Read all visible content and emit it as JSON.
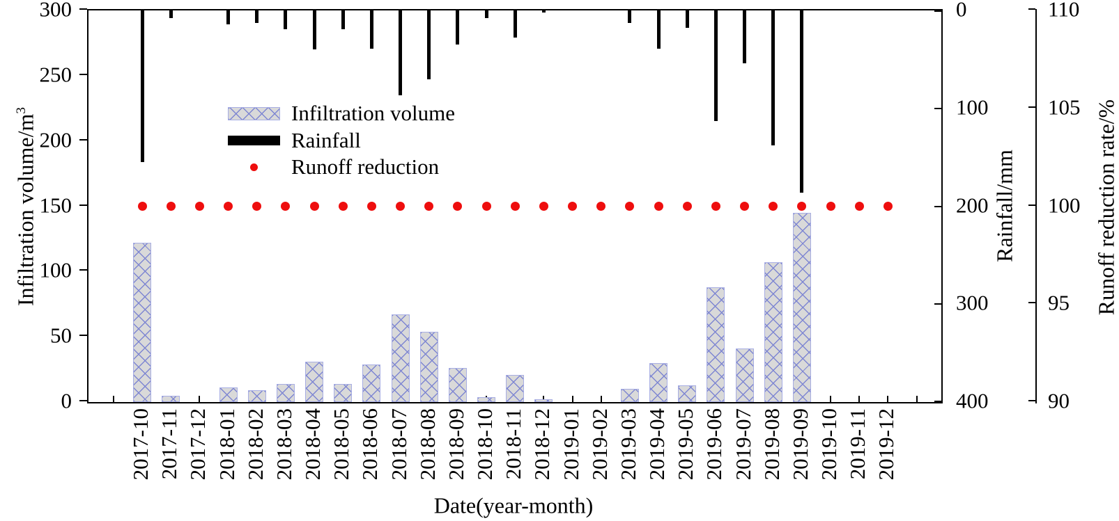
{
  "axis_titles": {
    "x": "Date(year-month)",
    "y_left_main": "Infiltration volume/m",
    "y_left_sup": "3",
    "y_right_inner": "Rainfall/mm",
    "y_right_outer": "Runoff reduction rate/%"
  },
  "legend": {
    "items": [
      {
        "label": "Infiltration volume",
        "marker": "hatched-bar"
      },
      {
        "label": "Rainfall",
        "marker": "solid-bar"
      },
      {
        "label": "Runoff reduction",
        "marker": "red-dot"
      }
    ]
  },
  "colors": {
    "bar_fill": "#d9d9d9",
    "bar_hatch": "#7e86d2",
    "bar_border": "#a7ade3",
    "rainfall_bar": "#000000",
    "runoff_dot": "#ee0e0e",
    "axis": "#000000"
  },
  "chart_data": {
    "type": "bar",
    "title": "",
    "xlabel": "Date(year-month)",
    "grid": false,
    "legend_position": "upper-left-inside",
    "categories": [
      "2017-10",
      "2017-11",
      "2017-12",
      "2018-01",
      "2018-02",
      "2018-03",
      "2018-04",
      "2018-05",
      "2018-06",
      "2018-07",
      "2018-08",
      "2018-09",
      "2018-10",
      "2018-11",
      "2018-12",
      "2019-01",
      "2019-02",
      "2019-03",
      "2019-04",
      "2019-05",
      "2019-06",
      "2019-07",
      "2019-08",
      "2019-09",
      "2019-10",
      "2019-11",
      "2019-12"
    ],
    "series": [
      {
        "name": "Infiltration volume",
        "axis": "left",
        "unit": "m3",
        "style": "hatched-bar",
        "values": [
          122,
          5,
          0,
          11,
          9,
          14,
          31,
          14,
          29,
          67,
          54,
          26,
          4,
          21,
          2,
          0,
          0,
          10,
          30,
          13,
          88,
          41,
          107,
          145,
          0,
          0,
          0
        ]
      },
      {
        "name": "Rainfall",
        "axis": "rainfall_inverted_top",
        "unit": "mm",
        "style": "solid-bar-from-top",
        "values": [
          155,
          8,
          0,
          14,
          13,
          19,
          40,
          19,
          39,
          87,
          70,
          35,
          8,
          28,
          2,
          0,
          0,
          13,
          39,
          18,
          113,
          54,
          138,
          186,
          0,
          0,
          0
        ]
      },
      {
        "name": "Runoff reduction",
        "axis": "runoff",
        "unit": "%",
        "style": "dot",
        "values": [
          100,
          100,
          100,
          100,
          100,
          100,
          100,
          100,
          100,
          100,
          100,
          100,
          100,
          100,
          100,
          100,
          100,
          100,
          100,
          100,
          100,
          100,
          100,
          100,
          100,
          100,
          100
        ]
      }
    ],
    "axes": {
      "left": {
        "label": "Infiltration volume/m3",
        "min": 0,
        "max": 300,
        "ticks": [
          0,
          50,
          100,
          150,
          200,
          250,
          300
        ]
      },
      "rainfall": {
        "label": "Rainfall/mm",
        "min": 0,
        "max": 400,
        "ticks": [
          0,
          100,
          200,
          300,
          400
        ],
        "inverted": true
      },
      "runoff": {
        "label": "Runoff reduction rate/%",
        "min": 90,
        "max": 110,
        "ticks": [
          90,
          95,
          100,
          105,
          110
        ]
      }
    }
  }
}
